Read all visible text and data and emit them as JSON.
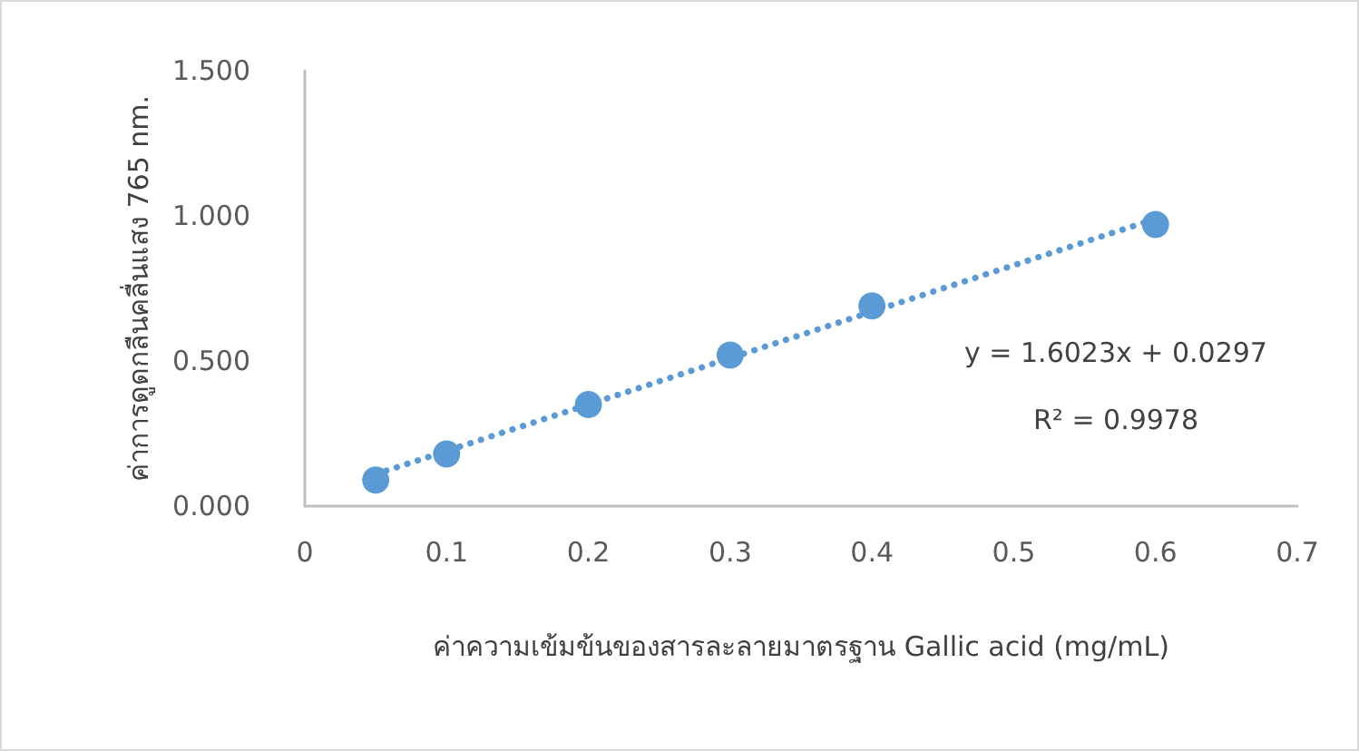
{
  "chart_data": {
    "type": "scatter",
    "xlabel": "ค่าความเข้มข้นของสารละลายมาตรฐาน Gallic acid (mg/mL)",
    "ylabel": "ค่าการดูดกลืนคลื่นแสง 765 nm.",
    "xlim": [
      0,
      0.7
    ],
    "xticks": [
      0,
      0.1,
      0.2,
      0.3,
      0.4,
      0.5,
      0.6,
      0.7
    ],
    "ylim": [
      0,
      1.5
    ],
    "yticks": [
      {
        "value": 0,
        "label": "0.000"
      },
      {
        "value": 0.5,
        "label": "0.500"
      },
      {
        "value": 1,
        "label": "1.000"
      },
      {
        "value": 1.5,
        "label": "1.500"
      }
    ],
    "grid": false,
    "series": [
      {
        "type": "scatter",
        "color": "#5b9bd5",
        "marker": "circle",
        "x": [
          0.05,
          0.1,
          0.2,
          0.3,
          0.4,
          0.6
        ],
        "values": [
          0.09,
          0.18,
          0.35,
          0.52,
          0.69,
          0.97
        ]
      },
      {
        "type": "line",
        "color": "#5b9bd5",
        "marker": "none",
        "line_style": "dotted",
        "x": [
          0.05,
          0.6
        ],
        "values": [
          0.11,
          0.99
        ]
      }
    ],
    "annotations": [
      "y = 1.6023x + 0.0297",
      "R² = 0.9978"
    ]
  }
}
